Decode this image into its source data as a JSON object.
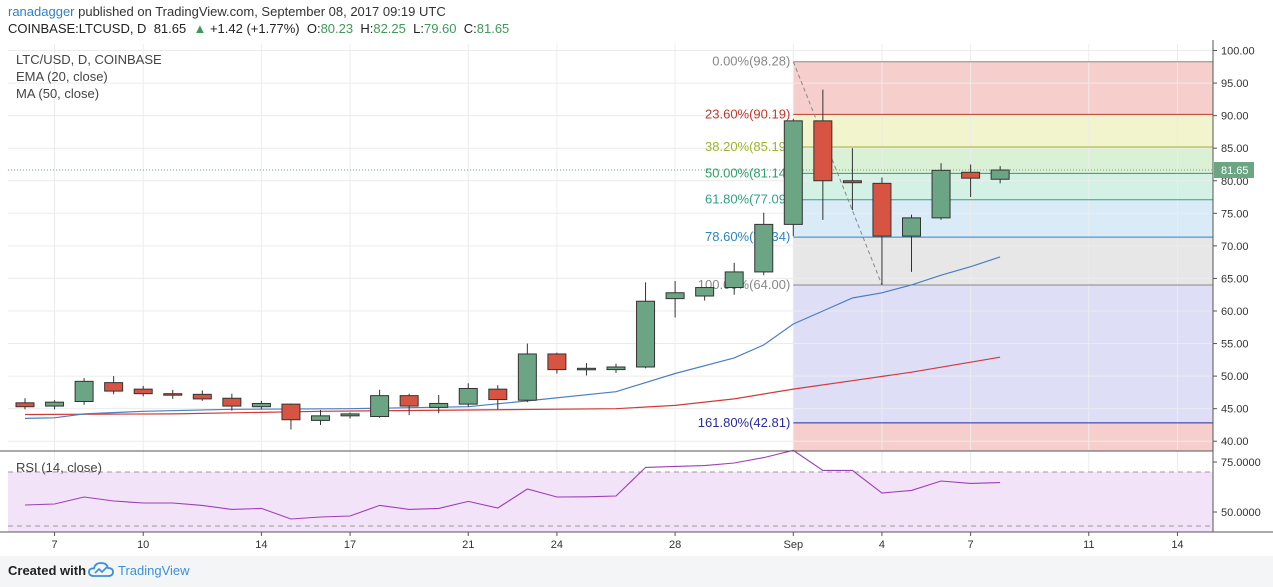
{
  "header": {
    "author": "ranadagger",
    "published_text": " published on TradingView.com, September 08, 2017 09:19 UTC",
    "symbol": "COINBASE:LTCUSD, D",
    "last": "81.65",
    "change_arrow": "▲",
    "change": "+1.42 (+1.77%)",
    "o_label": "O:",
    "o": "80.23",
    "h_label": "H:",
    "h": "82.25",
    "l_label": "L:",
    "l": "79.60",
    "c_label": "C:",
    "c": "81.65"
  },
  "legend": {
    "symbol_line": "LTC/USD, D, COINBASE",
    "ema_line": "EMA (20, close)",
    "ma_line": "MA (50, close)",
    "rsi_line": "RSI (14, close)"
  },
  "footer": {
    "created_with": "Created with",
    "brand": "TradingView"
  },
  "colors": {
    "up_candle": "#6ba583",
    "down_candle": "#d75442",
    "ema": "#4a7fc1",
    "ma": "#d23a3a",
    "rsi": "#9b3fb5",
    "price_badge": "#6ba583"
  },
  "chart_data": [
    {
      "type": "candlestick",
      "title": "LTC/USD, D, COINBASE",
      "x_tick_labels": [
        "7",
        "10",
        "14",
        "17",
        "21",
        "24",
        "28",
        "Sep",
        "4",
        "7",
        "11",
        "14"
      ],
      "y_tick_labels": [
        "100.00",
        "95.00",
        "90.00",
        "85.00",
        "80.00",
        "75.00",
        "70.00",
        "65.00",
        "60.00",
        "55.00",
        "50.00",
        "45.00",
        "40.00"
      ],
      "ylim": [
        38.5,
        101
      ],
      "last_price_label": "81.65",
      "candles": [
        {
          "date": "2017-08-06",
          "open": 45.9,
          "high": 46.6,
          "low": 44.9,
          "close": 45.3
        },
        {
          "date": "2017-08-07",
          "open": 45.4,
          "high": 46.3,
          "low": 44.9,
          "close": 46.0
        },
        {
          "date": "2017-08-08",
          "open": 46.1,
          "high": 49.7,
          "low": 45.6,
          "close": 49.2
        },
        {
          "date": "2017-08-09",
          "open": 49.0,
          "high": 50.0,
          "low": 47.2,
          "close": 47.7
        },
        {
          "date": "2017-08-10",
          "open": 48.0,
          "high": 48.5,
          "low": 46.9,
          "close": 47.3
        },
        {
          "date": "2017-08-11",
          "open": 47.3,
          "high": 47.9,
          "low": 46.5,
          "close": 47.1
        },
        {
          "date": "2017-08-12",
          "open": 47.2,
          "high": 47.8,
          "low": 46.2,
          "close": 46.5
        },
        {
          "date": "2017-08-13",
          "open": 46.6,
          "high": 47.3,
          "low": 44.7,
          "close": 45.4
        },
        {
          "date": "2017-08-14",
          "open": 45.3,
          "high": 46.2,
          "low": 44.9,
          "close": 45.8
        },
        {
          "date": "2017-08-15",
          "open": 45.7,
          "high": 45.8,
          "low": 41.8,
          "close": 43.3
        },
        {
          "date": "2017-08-16",
          "open": 43.2,
          "high": 44.8,
          "low": 42.5,
          "close": 43.9
        },
        {
          "date": "2017-08-17",
          "open": 43.9,
          "high": 44.4,
          "low": 43.5,
          "close": 44.2
        },
        {
          "date": "2017-08-18",
          "open": 43.8,
          "high": 47.9,
          "low": 43.6,
          "close": 47.0
        },
        {
          "date": "2017-08-19",
          "open": 47.0,
          "high": 47.3,
          "low": 44.0,
          "close": 45.4
        },
        {
          "date": "2017-08-20",
          "open": 45.2,
          "high": 47.1,
          "low": 44.3,
          "close": 45.8
        },
        {
          "date": "2017-08-21",
          "open": 45.7,
          "high": 48.9,
          "low": 45.3,
          "close": 48.1
        },
        {
          "date": "2017-08-22",
          "open": 48.0,
          "high": 48.6,
          "low": 44.9,
          "close": 46.4
        },
        {
          "date": "2017-08-23",
          "open": 46.3,
          "high": 55.0,
          "low": 46.0,
          "close": 53.4
        },
        {
          "date": "2017-08-24",
          "open": 53.4,
          "high": 53.6,
          "low": 50.4,
          "close": 51.0
        },
        {
          "date": "2017-08-25",
          "open": 51.0,
          "high": 52.0,
          "low": 50.1,
          "close": 51.2
        },
        {
          "date": "2017-08-26",
          "open": 51.0,
          "high": 51.9,
          "low": 50.5,
          "close": 51.4
        },
        {
          "date": "2017-08-27",
          "open": 51.4,
          "high": 64.4,
          "low": 51.2,
          "close": 61.5
        },
        {
          "date": "2017-08-28",
          "open": 61.9,
          "high": 64.6,
          "low": 59.0,
          "close": 62.8
        },
        {
          "date": "2017-08-29",
          "open": 62.3,
          "high": 63.5,
          "low": 61.6,
          "close": 63.6
        },
        {
          "date": "2017-08-30",
          "open": 63.6,
          "high": 67.4,
          "low": 62.5,
          "close": 66.0
        },
        {
          "date": "2017-08-31",
          "open": 66.0,
          "high": 75.1,
          "low": 65.5,
          "close": 73.3
        },
        {
          "date": "2017-09-01",
          "open": 73.3,
          "high": 89.5,
          "low": 71.5,
          "close": 89.2
        },
        {
          "date": "2017-09-02",
          "open": 89.2,
          "high": 94.0,
          "low": 74.0,
          "close": 80.0
        },
        {
          "date": "2017-09-03",
          "open": 80.0,
          "high": 85.0,
          "low": 75.5,
          "close": 79.7
        },
        {
          "date": "2017-09-04",
          "open": 79.6,
          "high": 80.5,
          "low": 64.0,
          "close": 71.5
        },
        {
          "date": "2017-09-05",
          "open": 71.5,
          "high": 74.8,
          "low": 66.0,
          "close": 74.3
        },
        {
          "date": "2017-09-06",
          "open": 74.3,
          "high": 82.7,
          "low": 74.0,
          "close": 81.6
        },
        {
          "date": "2017-09-07",
          "open": 81.3,
          "high": 82.5,
          "low": 77.5,
          "close": 80.4
        },
        {
          "date": "2017-09-08",
          "open": 80.23,
          "high": 82.25,
          "low": 79.6,
          "close": 81.65
        }
      ],
      "ema_20": [
        {
          "date": "2017-08-06",
          "value": 43.5
        },
        {
          "date": "2017-08-07",
          "value": 43.6
        },
        {
          "date": "2017-08-08",
          "value": 44.2
        },
        {
          "date": "2017-08-10",
          "value": 44.6
        },
        {
          "date": "2017-08-13",
          "value": 44.9
        },
        {
          "date": "2017-08-17",
          "value": 45.0
        },
        {
          "date": "2017-08-21",
          "value": 45.3
        },
        {
          "date": "2017-08-23",
          "value": 46.2
        },
        {
          "date": "2017-08-26",
          "value": 47.6
        },
        {
          "date": "2017-08-28",
          "value": 50.4
        },
        {
          "date": "2017-08-30",
          "value": 52.8
        },
        {
          "date": "2017-08-31",
          "value": 54.8
        },
        {
          "date": "2017-09-01",
          "value": 58.0
        },
        {
          "date": "2017-09-02",
          "value": 60.0
        },
        {
          "date": "2017-09-03",
          "value": 62.0
        },
        {
          "date": "2017-09-04",
          "value": 62.8
        },
        {
          "date": "2017-09-05",
          "value": 64.0
        },
        {
          "date": "2017-09-06",
          "value": 65.5
        },
        {
          "date": "2017-09-07",
          "value": 66.8
        },
        {
          "date": "2017-09-08",
          "value": 68.3
        }
      ],
      "ma_50": [
        {
          "date": "2017-08-06",
          "value": 44.1
        },
        {
          "date": "2017-08-11",
          "value": 44.2
        },
        {
          "date": "2017-08-16",
          "value": 44.6
        },
        {
          "date": "2017-08-21",
          "value": 44.8
        },
        {
          "date": "2017-08-26",
          "value": 45.0
        },
        {
          "date": "2017-08-28",
          "value": 45.5
        },
        {
          "date": "2017-08-30",
          "value": 46.5
        },
        {
          "date": "2017-09-01",
          "value": 48.0
        },
        {
          "date": "2017-09-03",
          "value": 49.3
        },
        {
          "date": "2017-09-05",
          "value": 50.6
        },
        {
          "date": "2017-09-08",
          "value": 52.9
        }
      ],
      "fibonacci": {
        "start_date": "2017-09-01",
        "levels": [
          {
            "label": "0.00%(98.28)",
            "value": 98.28,
            "color": "#888888"
          },
          {
            "label": "23.60%(90.19)",
            "value": 90.19,
            "color": "#c0392b"
          },
          {
            "label": "38.20%(85.19)",
            "value": 85.19,
            "color": "#9ab52a"
          },
          {
            "label": "50.00%(81.14)",
            "value": 81.14,
            "color": "#2e9e6a"
          },
          {
            "label": "61.80%(77.09)",
            "value": 77.09,
            "color": "#2ea57d"
          },
          {
            "label": "78.60%(71.34)",
            "value": 71.34,
            "color": "#2b86c5"
          },
          {
            "label": "100.00%(64.00)",
            "value": 64.0,
            "color": "#888888"
          },
          {
            "label": "161.80%(42.81)",
            "value": 42.81,
            "color": "#2a2aa0"
          }
        ],
        "bands": [
          {
            "from": 90.19,
            "to": 98.28,
            "color": "#f4c7c3"
          },
          {
            "from": 85.19,
            "to": 90.19,
            "color": "#eef2c3"
          },
          {
            "from": 81.14,
            "to": 85.19,
            "color": "#d3efcf"
          },
          {
            "from": 77.09,
            "to": 81.14,
            "color": "#ccefe1"
          },
          {
            "from": 71.34,
            "to": 77.09,
            "color": "#d2e7f4"
          },
          {
            "from": 64.0,
            "to": 71.34,
            "color": "#e3e3e3"
          },
          {
            "from": 42.81,
            "to": 64.0,
            "color": "#d8d8f6"
          },
          {
            "from": 38.5,
            "to": 42.81,
            "color": "#f4c7c3"
          }
        ],
        "trend_line": [
          {
            "date": "2017-09-01",
            "value": 98.28
          },
          {
            "date": "2017-09-04",
            "value": 64.0
          }
        ]
      }
    },
    {
      "type": "line",
      "title": "RSI (14, close)",
      "y_tick_labels": [
        "75.0000",
        "50.0000"
      ],
      "ylim": [
        40,
        80
      ],
      "bands": [
        30,
        70
      ],
      "series": [
        {
          "name": "RSI (14, close)",
          "values": [
            {
              "date": "2017-08-06",
              "value": 53.5
            },
            {
              "date": "2017-08-07",
              "value": 54.0
            },
            {
              "date": "2017-08-08",
              "value": 57.5
            },
            {
              "date": "2017-08-09",
              "value": 55.5
            },
            {
              "date": "2017-08-10",
              "value": 54.5
            },
            {
              "date": "2017-08-11",
              "value": 54.5
            },
            {
              "date": "2017-08-12",
              "value": 53.3
            },
            {
              "date": "2017-08-13",
              "value": 51.3
            },
            {
              "date": "2017-08-14",
              "value": 51.8
            },
            {
              "date": "2017-08-15",
              "value": 46.5
            },
            {
              "date": "2017-08-16",
              "value": 47.5
            },
            {
              "date": "2017-08-17",
              "value": 48.0
            },
            {
              "date": "2017-08-18",
              "value": 53.3
            },
            {
              "date": "2017-08-19",
              "value": 51.3
            },
            {
              "date": "2017-08-20",
              "value": 51.8
            },
            {
              "date": "2017-08-21",
              "value": 55.3
            },
            {
              "date": "2017-08-22",
              "value": 52.0
            },
            {
              "date": "2017-08-23",
              "value": 61.5
            },
            {
              "date": "2017-08-24",
              "value": 57.5
            },
            {
              "date": "2017-08-25",
              "value": 57.6
            },
            {
              "date": "2017-08-26",
              "value": 58.0
            },
            {
              "date": "2017-08-27",
              "value": 72.3
            },
            {
              "date": "2017-08-28",
              "value": 72.8
            },
            {
              "date": "2017-08-29",
              "value": 73.2
            },
            {
              "date": "2017-08-30",
              "value": 74.5
            },
            {
              "date": "2017-08-31",
              "value": 77.2
            },
            {
              "date": "2017-09-01",
              "value": 80.8
            },
            {
              "date": "2017-09-02",
              "value": 70.8
            },
            {
              "date": "2017-09-03",
              "value": 70.8
            },
            {
              "date": "2017-09-04",
              "value": 59.5
            },
            {
              "date": "2017-09-05",
              "value": 60.8
            },
            {
              "date": "2017-09-06",
              "value": 65.5
            },
            {
              "date": "2017-09-07",
              "value": 64.3
            },
            {
              "date": "2017-09-08",
              "value": 64.7
            }
          ]
        }
      ]
    }
  ]
}
